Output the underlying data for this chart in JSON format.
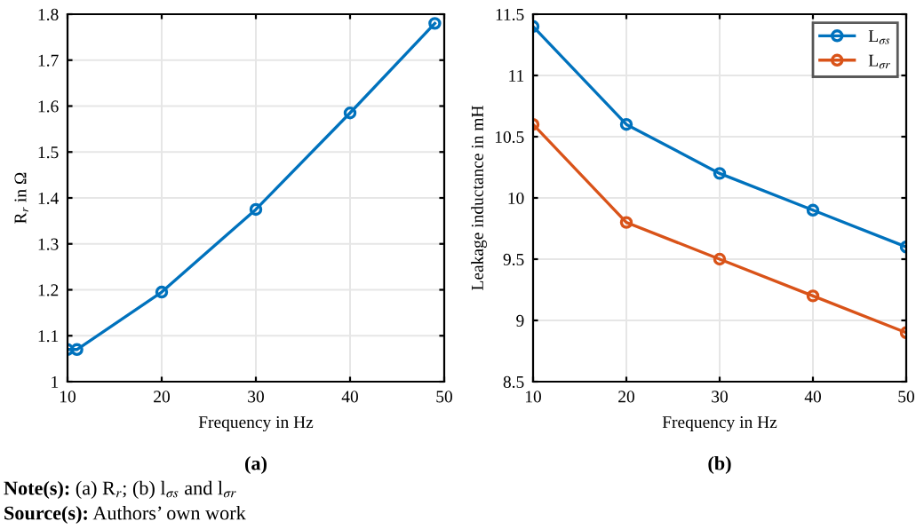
{
  "chart_data": [
    {
      "type": "line",
      "xlabel": "Frequency in Hz",
      "ylabel": "R$_{r}$ in Ω",
      "x": [
        10,
        11,
        20,
        30,
        40,
        49
      ],
      "series": [
        {
          "color": "#0072bd",
          "values": [
            1.07,
            1.07,
            1.195,
            1.375,
            1.585,
            1.78
          ]
        }
      ],
      "xlim": [
        10,
        50
      ],
      "ylim": [
        1,
        1.8
      ],
      "xticks": [
        10,
        20,
        30,
        40,
        50
      ],
      "yticks": [
        1,
        1.1,
        1.2,
        1.3,
        1.4,
        1.5,
        1.6,
        1.7,
        1.8
      ],
      "grid": true,
      "marker": "circle",
      "line_style": "solid",
      "legend": false,
      "annotations": [
        "(a)",
        "Note(s): (a) R$_{r}$; (b) l$_{σs}$ and l$_{σr}$",
        "Source(s): Authors’ own work"
      ]
    },
    {
      "type": "line",
      "xlabel": "Frequency in Hz",
      "ylabel": "Leakage inductance in mH",
      "x": [
        10,
        20,
        30,
        40,
        50
      ],
      "series": [
        {
          "name": "L$_{σs}$",
          "color": "#0072bd",
          "values": [
            11.4,
            10.6,
            10.2,
            9.9,
            9.6
          ]
        },
        {
          "name": "L$_{σr}$",
          "color": "#d95319",
          "values": [
            10.6,
            9.8,
            9.5,
            9.2,
            8.9
          ]
        }
      ],
      "xlim": [
        10,
        50
      ],
      "ylim": [
        8.5,
        11.5
      ],
      "xticks": [
        10,
        20,
        30,
        40,
        50
      ],
      "yticks": [
        8.5,
        9,
        9.5,
        10,
        10.5,
        11,
        11.5
      ],
      "grid": true,
      "marker": "circle",
      "line_style": "solid",
      "legend": "top right",
      "annotations": [
        "(b)"
      ]
    }
  ]
}
